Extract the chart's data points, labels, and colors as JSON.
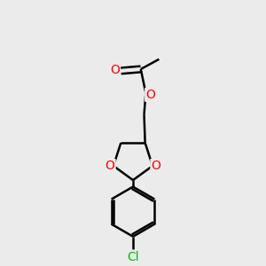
{
  "bg_color": "#ebebeb",
  "bond_color": "#000000",
  "o_color": "#ff0000",
  "cl_color": "#00bb00",
  "line_width": 1.8,
  "fig_size": [
    3.0,
    3.0
  ],
  "dpi": 100,
  "xlim": [
    -1.5,
    1.5
  ],
  "ylim": [
    -4.2,
    3.5
  ]
}
